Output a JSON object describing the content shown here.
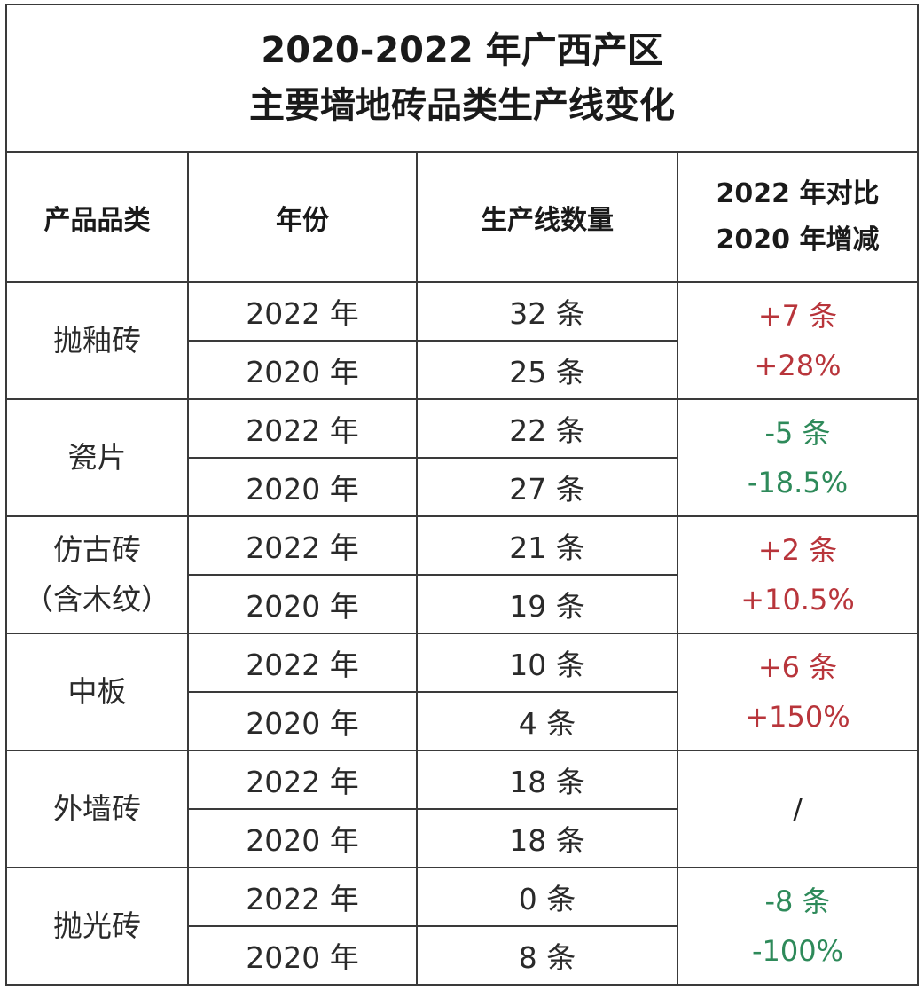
{
  "title": {
    "line1": "2020-2022 年广西产区",
    "line2": "主要墙地砖品类生产线变化"
  },
  "headers": {
    "category": "产品品类",
    "year": "年份",
    "count": "生产线数量",
    "change_line1": "2022 年对比",
    "change_line2": "2020 年增减"
  },
  "rows": [
    {
      "category": [
        "抛釉砖"
      ],
      "entries": [
        {
          "year": "2022 年",
          "count": "32 条"
        },
        {
          "year": "2020 年",
          "count": "25 条"
        }
      ],
      "change": [
        "+7 条",
        "+28%"
      ],
      "trend": "pos"
    },
    {
      "category": [
        "瓷片"
      ],
      "entries": [
        {
          "year": "2022 年",
          "count": "22 条"
        },
        {
          "year": "2020 年",
          "count": "27 条"
        }
      ],
      "change": [
        "-5 条",
        "-18.5%"
      ],
      "trend": "neg"
    },
    {
      "category": [
        "仿古砖",
        "（含木纹）"
      ],
      "entries": [
        {
          "year": "2022 年",
          "count": "21 条"
        },
        {
          "year": "2020 年",
          "count": "19 条"
        }
      ],
      "change": [
        "+2 条",
        "+10.5%"
      ],
      "trend": "pos"
    },
    {
      "category": [
        "中板"
      ],
      "entries": [
        {
          "year": "2022 年",
          "count": "10 条"
        },
        {
          "year": "2020 年",
          "count": "4 条"
        }
      ],
      "change": [
        "+6 条",
        "+150%"
      ],
      "trend": "pos"
    },
    {
      "category": [
        "外墙砖"
      ],
      "entries": [
        {
          "year": "2022 年",
          "count": "18 条"
        },
        {
          "year": "2020 年",
          "count": "18 条"
        }
      ],
      "change": [
        "/"
      ],
      "trend": "neutral"
    },
    {
      "category": [
        "抛光砖"
      ],
      "entries": [
        {
          "year": "2022 年",
          "count": "0 条"
        },
        {
          "year": "2020 年",
          "count": "8 条"
        }
      ],
      "change": [
        "-8 条",
        "-100%"
      ],
      "trend": "neg"
    }
  ],
  "colors": {
    "increase": "#b8353b",
    "decrease": "#2e8a5a",
    "border": "#3a3a3a"
  }
}
